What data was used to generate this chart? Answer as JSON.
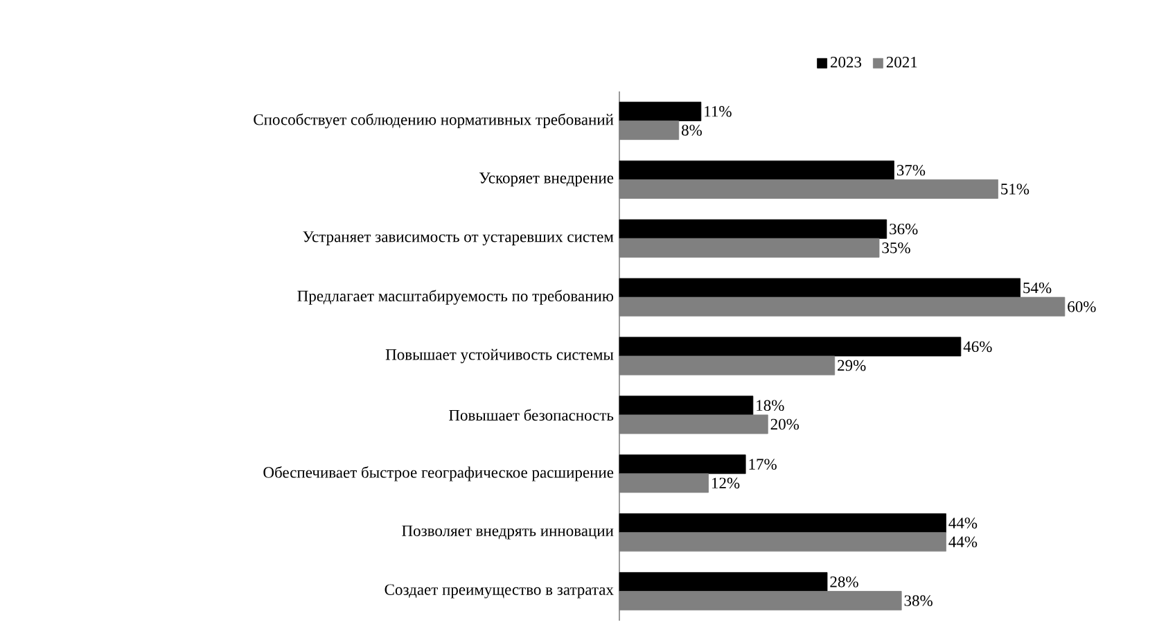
{
  "chart_data": {
    "type": "bar",
    "orientation": "horizontal",
    "legend": "top",
    "categories": [
      "Способствует соблюдению нормативных требований",
      "Ускоряет внедрение",
      "Устраняет зависимость от устаревших систем",
      "Предлагает масштабируемость по требованию",
      "Повышает устойчивость системы",
      "Повышает безопасность",
      "Обеспечивает быстрое географическое расширение",
      "Позволяет внедрять инновации",
      "Создает преимущество в затратах"
    ],
    "series": [
      {
        "name": "2023",
        "color": "#000000",
        "values": [
          11,
          37,
          36,
          54,
          46,
          18,
          17,
          44,
          28
        ],
        "value_labels": [
          "11%",
          "37%",
          "36%",
          "54%",
          "46%",
          "18%",
          "17%",
          "44%",
          "28%"
        ]
      },
      {
        "name": "2021",
        "color": "#808080",
        "values": [
          8,
          51,
          35,
          60,
          29,
          20,
          12,
          44,
          38
        ],
        "value_labels": [
          "8%",
          "51%",
          "35%",
          "60%",
          "29%",
          "20%",
          "12%",
          "44%",
          "38%"
        ]
      }
    ]
  }
}
